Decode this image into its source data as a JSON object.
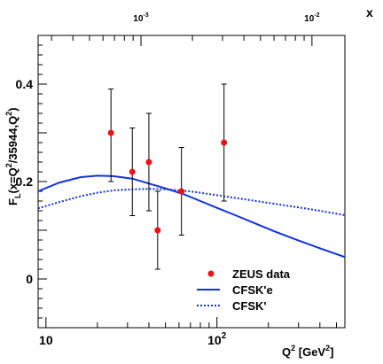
{
  "chart_data": {
    "type": "scatter",
    "x_scale": "log",
    "xlim": [
      9.0,
      560.0
    ],
    "ylim": [
      -0.1,
      0.5
    ],
    "grid": false,
    "legend_position": "bottom-center",
    "bottom_axis": {
      "major_ticks": [
        10,
        100
      ],
      "tick_labels": [
        {
          "base": "10",
          "exp": ""
        },
        {
          "base": "10",
          "exp": "2"
        }
      ],
      "label": {
        "main": "Q",
        "sup": "2",
        "rest": " [GeV",
        "sup2": "2",
        "end": "]"
      }
    },
    "top_axis": {
      "label": "x",
      "tick_labels": [
        {
          "base": "10",
          "exp": "-3",
          "q2": 35.944
        },
        {
          "base": "10",
          "exp": "-2",
          "q2": 359.44
        }
      ]
    },
    "y_axis": {
      "major_ticks": [
        0,
        0.2,
        0.4
      ],
      "tick_labels": [
        "0",
        "0.2",
        "0.4"
      ],
      "label": {
        "pre": "F",
        "sub": "L",
        "post": "(x=Q",
        "sup": "2",
        "post2": "/35944,Q",
        "sup2": "2",
        "end": ")"
      }
    },
    "series": [
      {
        "name": "ZEUS data",
        "kind": "points",
        "color": "#ee1111",
        "points": [
          {
            "q2": 24.0,
            "y": 0.3,
            "ylo": 0.2,
            "yhi": 0.39
          },
          {
            "q2": 32.0,
            "y": 0.22,
            "ylo": 0.13,
            "yhi": 0.31
          },
          {
            "q2": 40.0,
            "y": 0.24,
            "ylo": 0.14,
            "yhi": 0.34
          },
          {
            "q2": 45.0,
            "y": 0.1,
            "ylo": 0.02,
            "yhi": 0.18
          },
          {
            "q2": 62.0,
            "y": 0.18,
            "ylo": 0.09,
            "yhi": 0.27
          },
          {
            "q2": 110.0,
            "y": 0.28,
            "ylo": 0.16,
            "yhi": 0.4
          }
        ]
      },
      {
        "name": "CFSK'e",
        "kind": "solid-line",
        "color": "#1133dd",
        "x": [
          9.0,
          12.0,
          16.0,
          20.0,
          25.0,
          32.0,
          40.0,
          50.0,
          65.0,
          80.0,
          100.0,
          130.0,
          170.0,
          220.0,
          300.0,
          400.0,
          560.0
        ],
        "y": [
          0.18,
          0.198,
          0.209,
          0.212,
          0.211,
          0.206,
          0.196,
          0.186,
          0.173,
          0.16,
          0.146,
          0.13,
          0.113,
          0.097,
          0.079,
          0.063,
          0.045
        ]
      },
      {
        "name": "CFSK'",
        "kind": "dotted-line",
        "color": "#1133dd",
        "x": [
          9.0,
          12.0,
          16.0,
          20.0,
          25.0,
          32.0,
          40.0,
          50.0,
          65.0,
          80.0,
          100.0,
          130.0,
          170.0,
          220.0,
          300.0,
          400.0,
          560.0
        ],
        "y": [
          0.145,
          0.158,
          0.17,
          0.177,
          0.182,
          0.184,
          0.185,
          0.184,
          0.181,
          0.177,
          0.172,
          0.166,
          0.16,
          0.154,
          0.147,
          0.14,
          0.131
        ]
      }
    ]
  }
}
